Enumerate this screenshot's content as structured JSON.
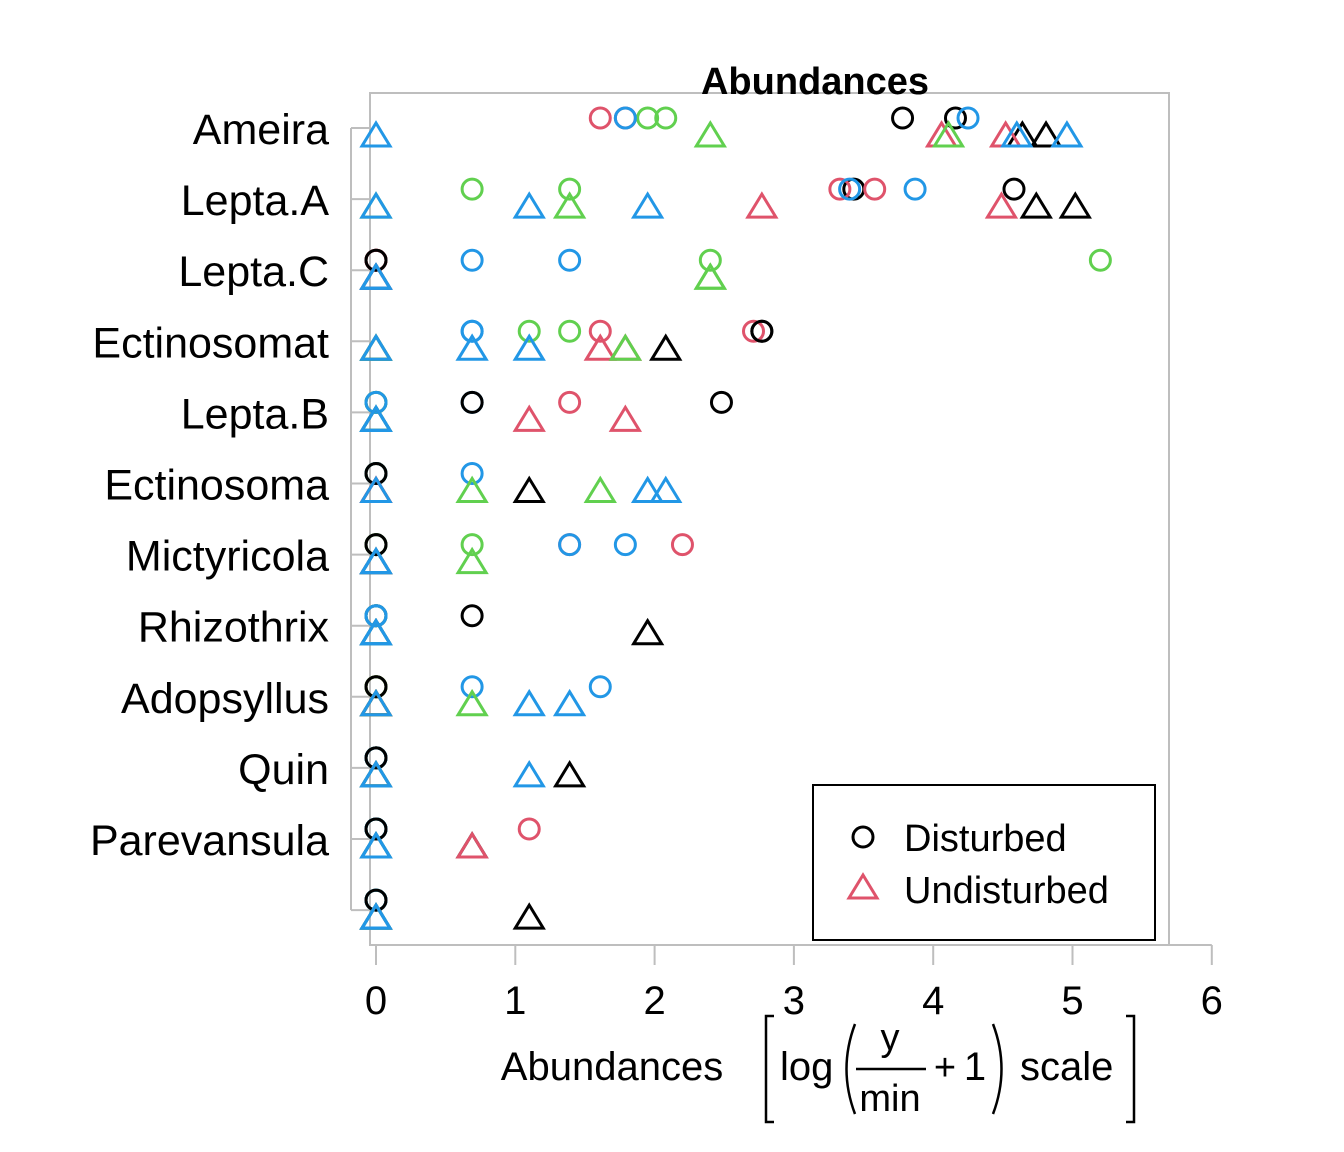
{
  "chart_data": {
    "type": "scatter",
    "title": "Abundances",
    "xlabel": {
      "prefix": "Abundances",
      "func": "log",
      "numerator": "y",
      "denominator": "min",
      "plus": "+",
      "one": "1",
      "suffix": "scale"
    },
    "xlim": [
      0,
      6
    ],
    "x_ticks": [
      "0",
      "1",
      "2",
      "3",
      "4",
      "5",
      "6"
    ],
    "categories": [
      "Ameira",
      "Lepta.A",
      "Lepta.C",
      "Ectinosomat",
      "Lepta.B",
      "Ectinosoma",
      "Mictyricola",
      "Rhizothrix",
      "Adopsyllus",
      "Quin",
      "Parevansula",
      ""
    ],
    "legend": {
      "placement": "bottom-right",
      "entries": [
        {
          "label": "Disturbed",
          "shape": "circle",
          "color": "#000000"
        },
        {
          "label": "Undisturbed",
          "shape": "triangle",
          "color": "#df536b"
        }
      ]
    },
    "colors": {
      "black": "#000000",
      "red": "#df536b",
      "green": "#61d04f",
      "blue": "#2297e6",
      "frame": "#bebebe"
    },
    "series": [
      {
        "group": "Disturbed",
        "shape": "circle",
        "color": "black",
        "values": [
          4.16,
          3.43,
          0,
          2.77,
          2.48,
          0,
          0,
          0,
          0,
          0,
          0,
          0
        ]
      },
      {
        "group": "Disturbed",
        "shape": "circle",
        "color": "red",
        "values": [
          1.61,
          3.58,
          0,
          2.71,
          1.39,
          0,
          1.39,
          0,
          0,
          0,
          1.1,
          0
        ]
      },
      {
        "group": "Disturbed",
        "shape": "circle",
        "color": "red",
        "values": [
          1.79,
          3.33,
          0,
          1.61,
          0,
          0,
          2.2,
          0,
          0,
          0,
          0,
          0
        ]
      },
      {
        "group": "Disturbed",
        "shape": "circle",
        "color": "green",
        "values": [
          1.95,
          0.69,
          2.4,
          1.1,
          0,
          0,
          0,
          0,
          0,
          0,
          0,
          0
        ]
      },
      {
        "group": "Disturbed",
        "shape": "circle",
        "color": "green",
        "values": [
          2.08,
          1.39,
          5.2,
          1.39,
          0,
          0,
          0.69,
          0,
          0,
          0,
          0,
          0
        ]
      },
      {
        "group": "Disturbed",
        "shape": "circle",
        "color": "blue",
        "values": [
          1.79,
          3.4,
          0.69,
          0.69,
          0.69,
          0.69,
          1.39,
          0,
          0.69,
          0,
          0,
          0
        ]
      },
      {
        "group": "Disturbed",
        "shape": "circle",
        "color": "blue",
        "values": [
          4.25,
          3.87,
          1.39,
          0.69,
          0,
          0,
          1.79,
          0,
          1.61,
          0,
          0,
          0
        ]
      },
      {
        "group": "Disturbed",
        "shape": "circle",
        "color": "black",
        "values": [
          3.78,
          4.58,
          0,
          2.77,
          0.69,
          0,
          0,
          0.69,
          0,
          0,
          0,
          0
        ]
      },
      {
        "group": "Undisturbed",
        "shape": "triangle",
        "color": "black",
        "values": [
          4.64,
          4.74,
          0,
          2.08,
          0,
          1.1,
          0,
          1.95,
          0,
          1.39,
          0.69,
          1.1
        ]
      },
      {
        "group": "Undisturbed",
        "shape": "triangle",
        "color": "black",
        "values": [
          4.81,
          5.02,
          0,
          0,
          0,
          0,
          0,
          0,
          0,
          0,
          0,
          0
        ]
      },
      {
        "group": "Undisturbed",
        "shape": "triangle",
        "color": "red",
        "values": [
          4.06,
          4.49,
          0,
          1.61,
          1.1,
          0,
          0,
          0,
          0,
          0,
          0.69,
          0
        ]
      },
      {
        "group": "Undisturbed",
        "shape": "triangle",
        "color": "red",
        "values": [
          4.52,
          2.77,
          0,
          1.79,
          1.79,
          0,
          0,
          0,
          0,
          0,
          0,
          0
        ]
      },
      {
        "group": "Undisturbed",
        "shape": "triangle",
        "color": "green",
        "values": [
          2.4,
          0,
          2.4,
          0,
          0,
          0.69,
          0.69,
          0,
          0.69,
          0,
          0,
          0
        ]
      },
      {
        "group": "Undisturbed",
        "shape": "triangle",
        "color": "green",
        "values": [
          4.11,
          1.39,
          2.4,
          1.79,
          0,
          1.61,
          0,
          0,
          0,
          0,
          0,
          0
        ]
      },
      {
        "group": "Undisturbed",
        "shape": "triangle",
        "color": "blue",
        "values": [
          4.6,
          1.1,
          0,
          0.69,
          0,
          1.95,
          0,
          0,
          1.1,
          1.1,
          0,
          0
        ]
      },
      {
        "group": "Undisturbed",
        "shape": "triangle",
        "color": "blue",
        "values": [
          4.96,
          1.95,
          0,
          1.1,
          0,
          2.08,
          0,
          0,
          1.39,
          0,
          0,
          0
        ]
      },
      {
        "group": "Undisturbed",
        "shape": "triangle",
        "color": "blue",
        "values": [
          0,
          0,
          0,
          0,
          0,
          0,
          0,
          0,
          0,
          0,
          0,
          0
        ]
      }
    ]
  }
}
